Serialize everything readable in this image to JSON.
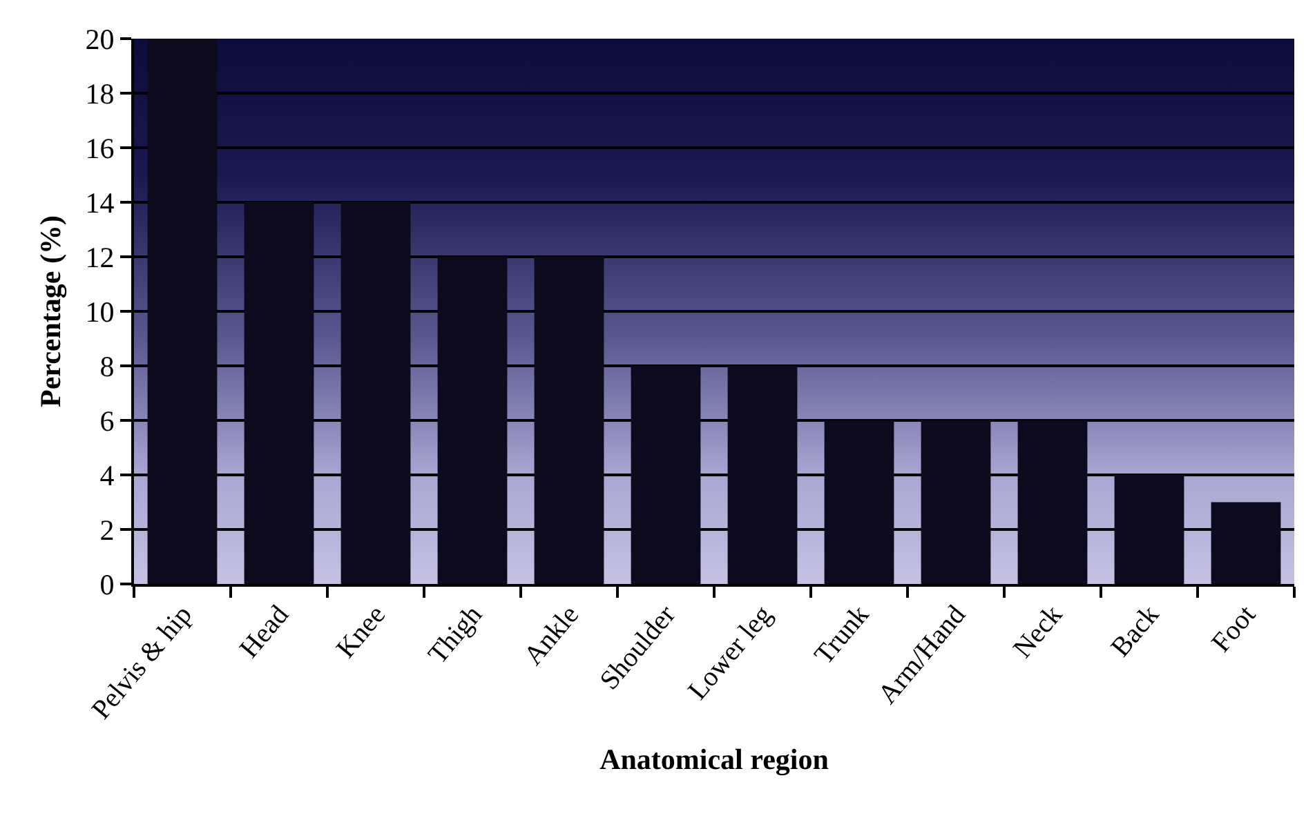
{
  "chart_data": {
    "type": "bar",
    "xlabel": "Anatomical region",
    "ylabel": "Percentage (%)",
    "categories": [
      "Pelvis & hip",
      "Head",
      "Knee",
      "Thigh",
      "Ankle",
      "Shoulder",
      "Lower leg",
      "Trunk",
      "Arm/Hand",
      "Neck",
      "Back",
      "Foot"
    ],
    "values": [
      20,
      14,
      14,
      12,
      12,
      8,
      8,
      6,
      6,
      6,
      4,
      3
    ],
    "color": "#0c0a1c",
    "ylim": [
      0,
      20
    ],
    "yticks": [
      0,
      2,
      4,
      6,
      8,
      10,
      12,
      14,
      16,
      18,
      20
    ],
    "grid": "y"
  }
}
